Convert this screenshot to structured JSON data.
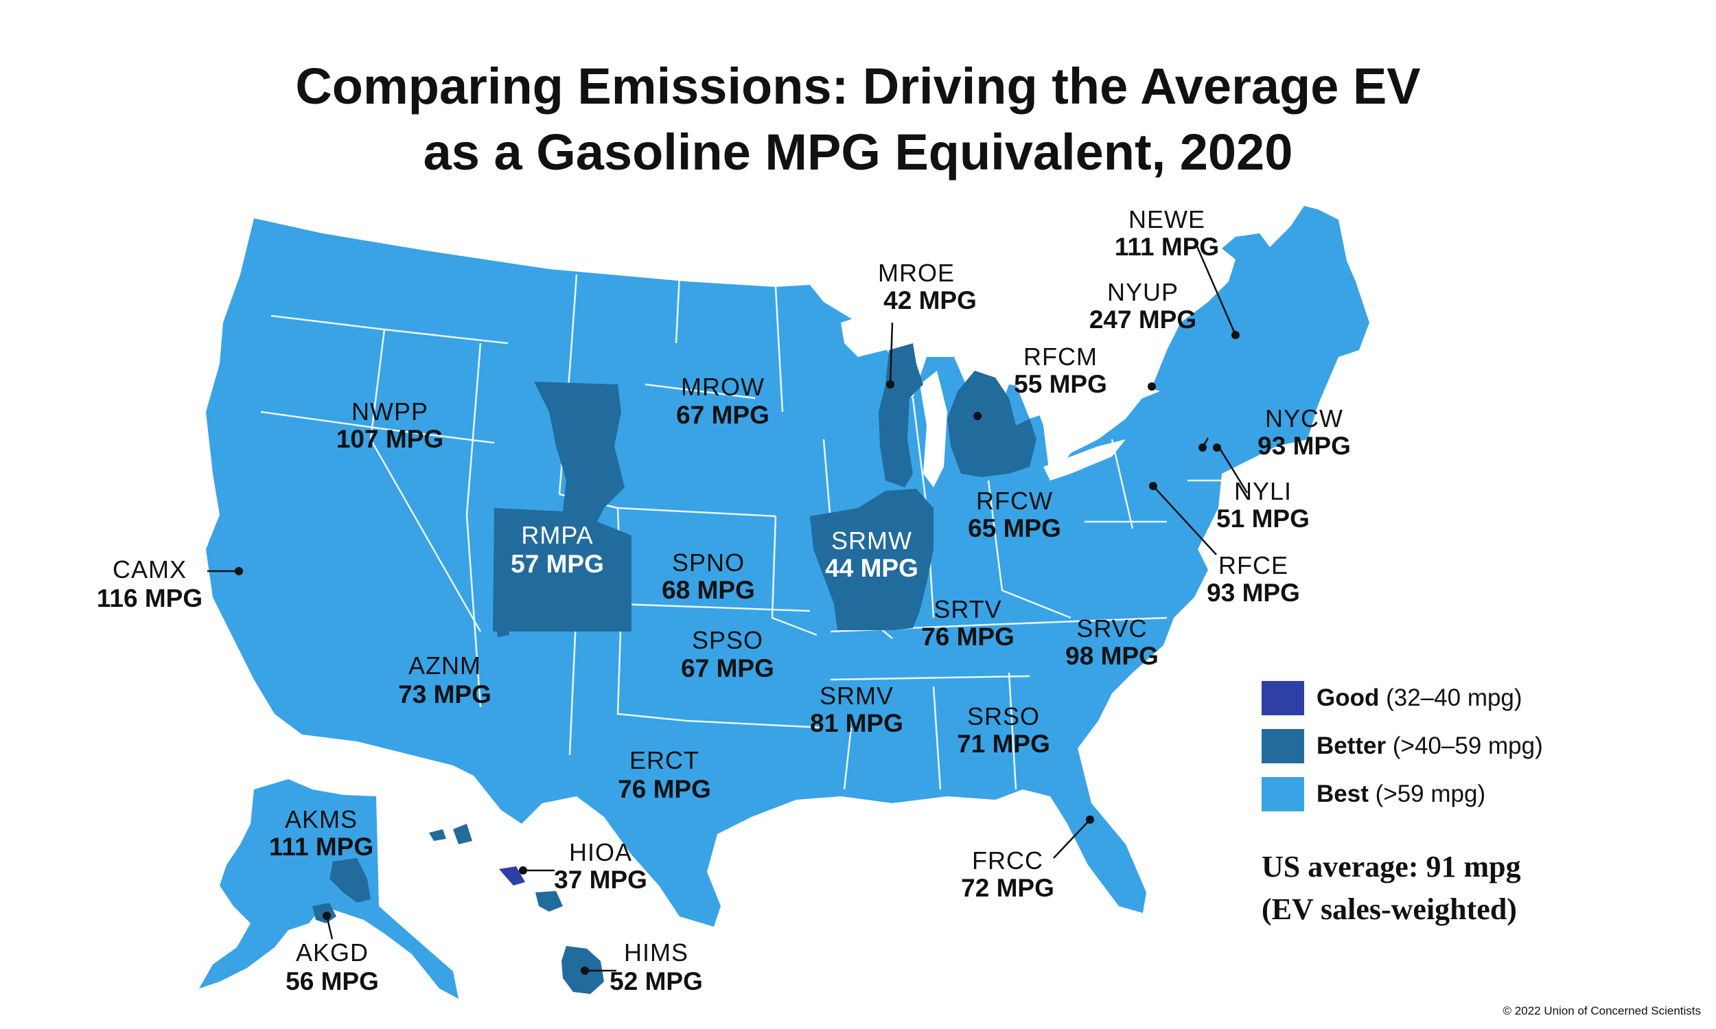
{
  "title_line1": "Comparing Emissions: Driving the Average EV",
  "title_line2": "as a Gasoline MPG Equivalent, 2020",
  "colors": {
    "good": "#2e3fa6",
    "better": "#226b9d",
    "best": "#39a3e6",
    "boundary": "#ffffff"
  },
  "regions": {
    "NEWE": {
      "name": "NEWE",
      "value": "111 MPG",
      "category": "Best"
    },
    "MROE": {
      "name": "MROE",
      "value": "42 MPG",
      "category": "Better"
    },
    "NYUP": {
      "name": "NYUP",
      "value": "247 MPG",
      "category": "Best"
    },
    "RFCM": {
      "name": "RFCM",
      "value": "55 MPG",
      "category": "Better"
    },
    "MROW": {
      "name": "MROW",
      "value": "67 MPG",
      "category": "Best"
    },
    "NWPP": {
      "name": "NWPP",
      "value": "107 MPG",
      "category": "Best"
    },
    "NYCW": {
      "name": "NYCW",
      "value": "93 MPG",
      "category": "Best"
    },
    "NYLI": {
      "name": "NYLI",
      "value": "51 MPG",
      "category": "Better"
    },
    "RFCW": {
      "name": "RFCW",
      "value": "65 MPG",
      "category": "Best"
    },
    "RMPA": {
      "name": "RMPA",
      "value": "57 MPG",
      "category": "Better"
    },
    "SRMW": {
      "name": "SRMW",
      "value": "44 MPG",
      "category": "Better"
    },
    "SPNO": {
      "name": "SPNO",
      "value": "68 MPG",
      "category": "Best"
    },
    "CAMX": {
      "name": "CAMX",
      "value": "116 MPG",
      "category": "Best"
    },
    "RFCE": {
      "name": "RFCE",
      "value": "93 MPG",
      "category": "Best"
    },
    "SRTV": {
      "name": "SRTV",
      "value": "76 MPG",
      "category": "Best"
    },
    "SRVC": {
      "name": "SRVC",
      "value": "98 MPG",
      "category": "Best"
    },
    "SPSO": {
      "name": "SPSO",
      "value": "67 MPG",
      "category": "Best"
    },
    "AZNM": {
      "name": "AZNM",
      "value": "73 MPG",
      "category": "Best"
    },
    "SRMV": {
      "name": "SRMV",
      "value": "81 MPG",
      "category": "Best"
    },
    "SRSO": {
      "name": "SRSO",
      "value": "71 MPG",
      "category": "Best"
    },
    "ERCT": {
      "name": "ERCT",
      "value": "76 MPG",
      "category": "Best"
    },
    "AKMS": {
      "name": "AKMS",
      "value": "111 MPG",
      "category": "Best"
    },
    "HIOA": {
      "name": "HIOA",
      "value": "37 MPG",
      "category": "Good"
    },
    "FRCC": {
      "name": "FRCC",
      "value": "72 MPG",
      "category": "Best"
    },
    "AKGD": {
      "name": "AKGD",
      "value": "56 MPG",
      "category": "Better"
    },
    "HIMS": {
      "name": "HIMS",
      "value": "52 MPG",
      "category": "Better"
    }
  },
  "legend": [
    {
      "label": "Good",
      "range": "(32–40 mpg)",
      "color": "#2e3fa6"
    },
    {
      "label": "Better",
      "range": "(>40–59 mpg)",
      "color": "#226b9d"
    },
    {
      "label": "Best",
      "range": "(>59 mpg)",
      "color": "#39a3e6"
    }
  ],
  "us_average_line1": "US average: 91 mpg",
  "us_average_line2": "(EV sales-weighted)",
  "copyright": "© 2022 Union of Concerned Scientists"
}
